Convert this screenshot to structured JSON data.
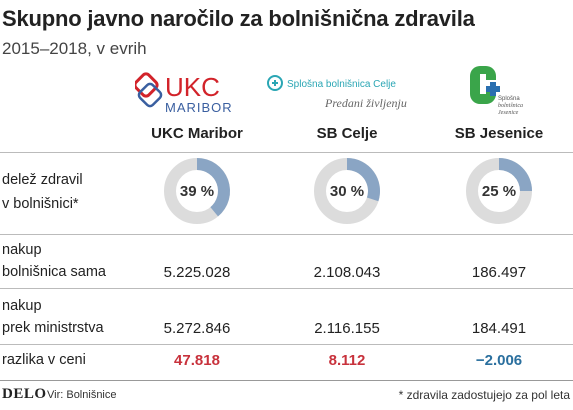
{
  "header": {
    "title": "Skupno javno naročilo za bolnišnična zdravila",
    "subtitle": "2015–2018, v evrih"
  },
  "logos": {
    "ukc": {
      "main": "UKC",
      "sub": "MARIBOR"
    },
    "celje": {
      "name": "Splošna bolnišnica Celje",
      "tagline": "Predani življenju"
    },
    "jesenice": {
      "line1": "Splošna",
      "line2": "bolnišnica",
      "line3": "Jesenice"
    }
  },
  "columns": [
    "UKC Maribor",
    "SB Celje",
    "SB Jesenice"
  ],
  "rows": {
    "share": {
      "label_line1": "delež zdravil",
      "label_line2": "v bolnišnici*"
    },
    "own": {
      "label_line1": "nakup",
      "label_line2": "bolnišnica sama",
      "values": [
        "5.225.028",
        "2.108.043",
        "186.497"
      ]
    },
    "ministry": {
      "label_line1": "nakup",
      "label_line2": "prek ministrstva",
      "values": [
        "5.272.846",
        "2.116.155",
        "184.491"
      ]
    },
    "diff": {
      "label": "razlika v ceni",
      "values": [
        "47.818",
        "8.112",
        "−2.006"
      ]
    }
  },
  "chart_data": {
    "type": "pie",
    "title": "delež zdravil v bolnišnici*",
    "categories": [
      "UKC Maribor",
      "SB Celje",
      "SB Jesenice"
    ],
    "values": [
      39,
      30,
      25
    ],
    "labels": [
      "39 %",
      "30 %",
      "25 %"
    ],
    "unit": "%"
  },
  "colors": {
    "donut_fill": "#8aa5c4",
    "donut_track": "#dcdcdc",
    "positive": "#c8323c",
    "negative": "#2a6f9e",
    "ukc_red": "#d2232a",
    "ukc_blue": "#3a5fa0",
    "celje_teal": "#2aa6b4",
    "jesenice_green": "#3aa54a"
  },
  "footer": {
    "brand": "DELO",
    "source": "Vir: Bolnišnice",
    "footnote": "* zdravila zadostujejo za pol leta"
  }
}
